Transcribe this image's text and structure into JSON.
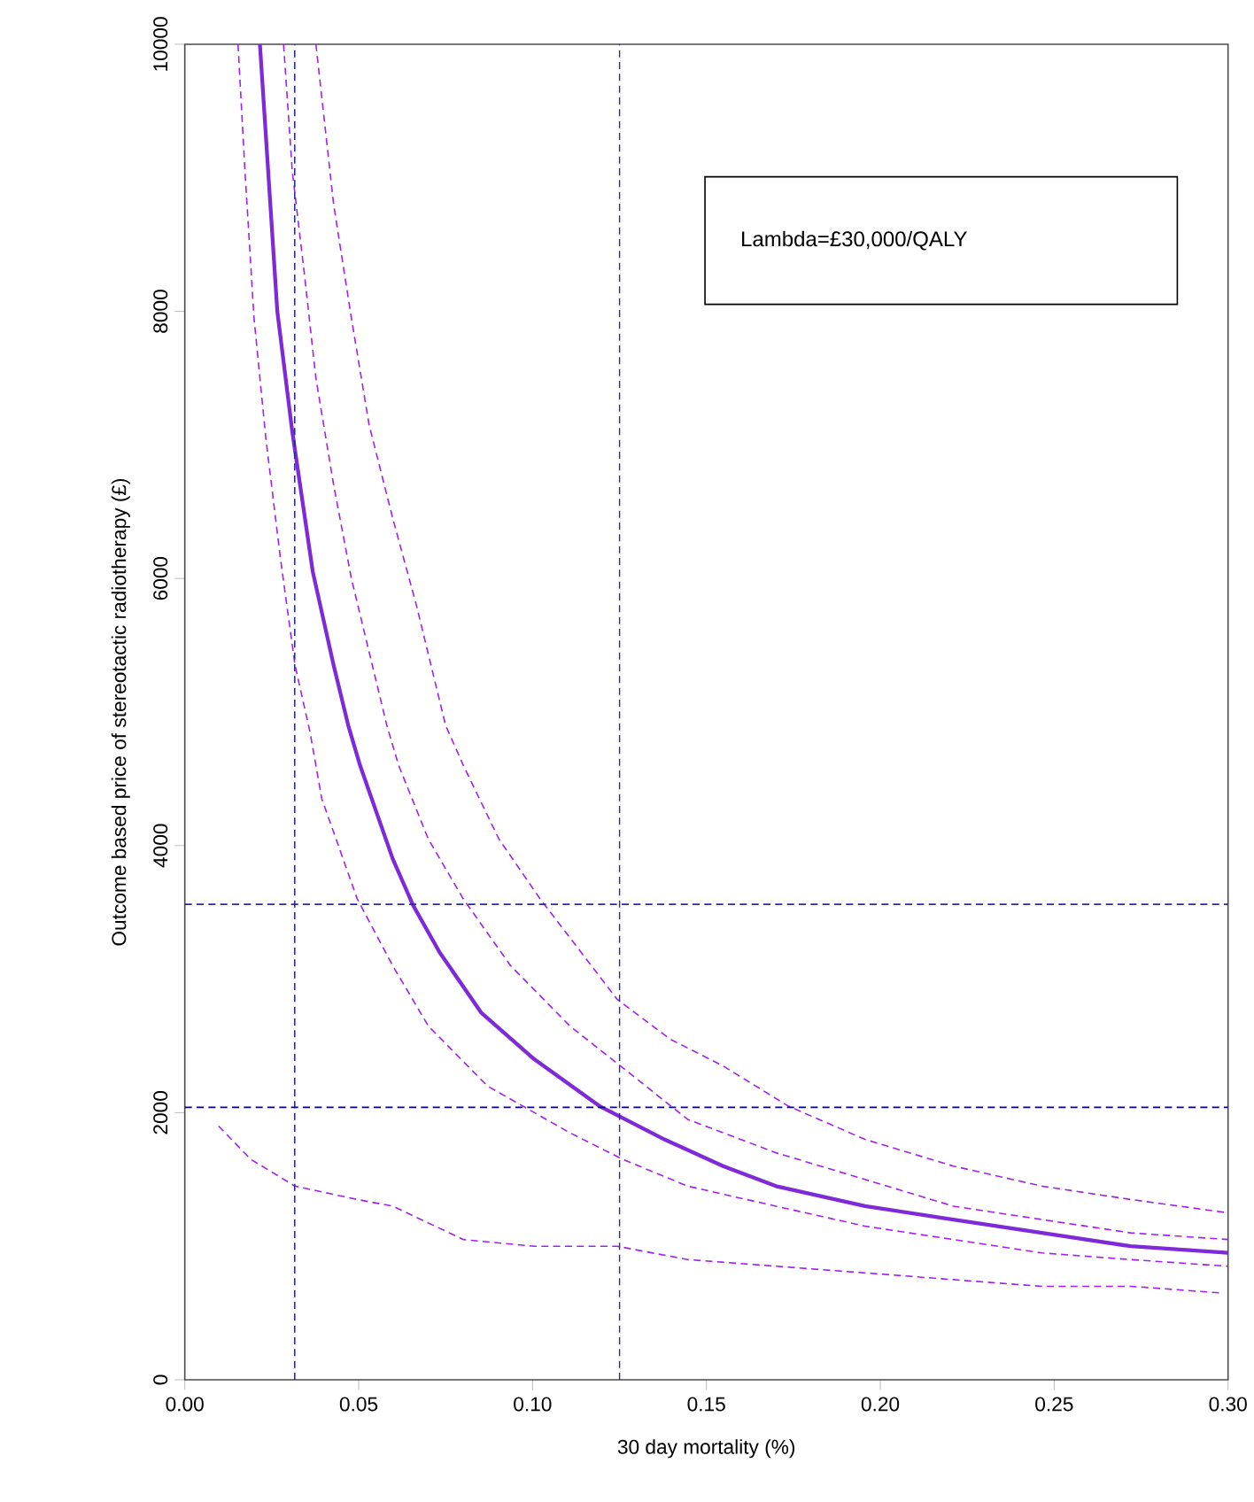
{
  "chart_data": {
    "type": "line",
    "xlabel": "30 day mortality (%)",
    "ylabel": "Outcome based price of stereotactic radiotherapy (£)",
    "xlim": [
      0,
      0.3
    ],
    "ylim": [
      0,
      10000
    ],
    "xticks": [
      {
        "value": 0,
        "label": "0.00"
      },
      {
        "value": 0.05,
        "label": "0.05"
      },
      {
        "value": 0.1,
        "label": "0.10"
      },
      {
        "value": 0.15,
        "label": "0.15"
      },
      {
        "value": 0.2,
        "label": "0.20"
      },
      {
        "value": 0.25,
        "label": "0.25"
      },
      {
        "value": 0.3,
        "label": "0.30"
      }
    ],
    "yticks": [
      0,
      2000,
      4000,
      6000,
      8000,
      10000
    ],
    "annotations": [
      "Lambda=£30,000/QALY"
    ],
    "ref_lines": [
      {
        "axis": "x",
        "value": 0.0316,
        "color": "#2a2a9a",
        "line_style": "dashed"
      },
      {
        "axis": "x",
        "value": 0.125,
        "color": "#2a2a9a",
        "line_style": "dashed"
      },
      {
        "axis": "y",
        "value": 3560,
        "color": "#2a2a9a",
        "line_style": "dashed"
      },
      {
        "axis": "y",
        "value": 2040,
        "color": "#00008b",
        "line_style": "dashed"
      }
    ],
    "series": [
      {
        "color": "#7e2ad8",
        "line_style": "solid",
        "x": [
          0.0216,
          0.0266,
          0.0309,
          0.0368,
          0.0428,
          0.047,
          0.0504,
          0.0598,
          0.0657,
          0.0733,
          0.0852,
          0.1005,
          0.1192,
          0.1379,
          0.1548,
          0.17,
          0.1956,
          0.221,
          0.2465,
          0.272,
          0.3
        ],
        "values": [
          10000,
          8000,
          7100,
          6050,
          5350,
          4900,
          4600,
          3900,
          3550,
          3200,
          2750,
          2400,
          2050,
          1800,
          1600,
          1450,
          1300,
          1200,
          1100,
          1000,
          950
        ]
      },
      {
        "color": "#a020f0",
        "line_style": "dashed",
        "x": [
          0.0377,
          0.0428,
          0.0479,
          0.053,
          0.0598,
          0.0666,
          0.075,
          0.0801,
          0.0903,
          0.1022,
          0.1243,
          0.1396,
          0.1548,
          0.1735,
          0.1956,
          0.221,
          0.2465,
          0.272,
          0.3
        ],
        "values": [
          10000,
          8800,
          7950,
          7150,
          6450,
          5800,
          4900,
          4600,
          4050,
          3600,
          2850,
          2550,
          2350,
          2050,
          1800,
          1600,
          1450,
          1350,
          1250
        ]
      },
      {
        "color": "#a020f0",
        "line_style": "dashed",
        "x": [
          0.0284,
          0.0309,
          0.0343,
          0.0377,
          0.0428,
          0.0479,
          0.0581,
          0.0615,
          0.07,
          0.0801,
          0.0937,
          0.1107,
          0.1277,
          0.1446,
          0.17,
          0.1956,
          0.221,
          0.2465,
          0.272,
          0.3
        ],
        "values": [
          10000,
          9050,
          8300,
          7500,
          6700,
          6000,
          4900,
          4600,
          4050,
          3600,
          3100,
          2650,
          2300,
          1950,
          1700,
          1500,
          1300,
          1200,
          1100,
          1050
        ]
      },
      {
        "color": "#a020f0",
        "line_style": "dashed",
        "x": [
          0.0153,
          0.0173,
          0.0199,
          0.0233,
          0.0275,
          0.0317,
          0.036,
          0.0394,
          0.0496,
          0.0598,
          0.07,
          0.087,
          0.1107,
          0.126,
          0.1446,
          0.17,
          0.1956,
          0.221,
          0.2465,
          0.272,
          0.3
        ],
        "values": [
          10000,
          9050,
          7950,
          7050,
          6150,
          5350,
          4850,
          4350,
          3600,
          3100,
          2650,
          2200,
          1850,
          1650,
          1450,
          1300,
          1150,
          1050,
          950,
          900,
          850
        ]
      },
      {
        "color": "#a020f0",
        "line_style": "dashed",
        "x": [
          0.0097,
          0.019,
          0.0317,
          0.0496,
          0.0598,
          0.0801,
          0.1005,
          0.1243,
          0.1446,
          0.17,
          0.1956,
          0.221,
          0.2465,
          0.272,
          0.298
        ],
        "values": [
          1900,
          1650,
          1450,
          1350,
          1300,
          1050,
          1000,
          1000,
          900,
          850,
          800,
          750,
          700,
          700,
          650
        ]
      }
    ]
  }
}
